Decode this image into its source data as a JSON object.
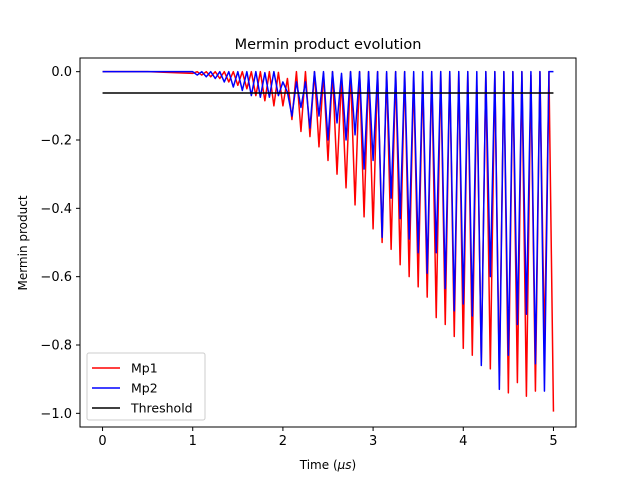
{
  "chart_data": {
    "type": "line",
    "title": "Mermin product evolution",
    "xlabel_prefix": "Time (",
    "xlabel_unit": "μs",
    "xlabel_suffix": ")",
    "ylabel": "Mermin product",
    "xlim": [
      -0.25,
      5.25
    ],
    "ylim": [
      -1.04,
      0.04
    ],
    "xticks": [
      0,
      1,
      2,
      3,
      4,
      5
    ],
    "xtick_labels": [
      "0",
      "1",
      "2",
      "3",
      "4",
      "5"
    ],
    "yticks": [
      0.0,
      -0.2,
      -0.4,
      -0.6,
      -0.8,
      -1.0
    ],
    "ytick_labels": [
      "0.0",
      "−0.2",
      "−0.4",
      "−0.6",
      "−0.8",
      "−1.0"
    ],
    "grid": false,
    "legend_position": "lower-left",
    "series": [
      {
        "name": "Mp1",
        "color": "#ff0000",
        "x": [
          0,
          0.5,
          1.0,
          1.05,
          1.1,
          1.15,
          1.2,
          1.25,
          1.3,
          1.35,
          1.4,
          1.45,
          1.5,
          1.55,
          1.6,
          1.65,
          1.7,
          1.75,
          1.8,
          1.85,
          1.9,
          1.95,
          2.0,
          2.05,
          2.1,
          2.15,
          2.2,
          2.25,
          2.3,
          2.35,
          2.4,
          2.45,
          2.5,
          2.55,
          2.6,
          2.65,
          2.7,
          2.75,
          2.8,
          2.85,
          2.9,
          2.95,
          3.0,
          3.05,
          3.1,
          3.15,
          3.2,
          3.25,
          3.3,
          3.35,
          3.4,
          3.45,
          3.5,
          3.55,
          3.6,
          3.65,
          3.7,
          3.75,
          3.8,
          3.85,
          3.9,
          3.95,
          4.0,
          4.05,
          4.1,
          4.15,
          4.2,
          4.25,
          4.3,
          4.35,
          4.4,
          4.45,
          4.5,
          4.55,
          4.6,
          4.65,
          4.7,
          4.75,
          4.8,
          4.85,
          4.9,
          4.95,
          5.0
        ],
        "y": [
          0,
          0,
          -0.005,
          0,
          -0.01,
          0,
          -0.015,
          0,
          -0.02,
          0,
          -0.03,
          0,
          -0.04,
          0,
          -0.05,
          0,
          -0.07,
          0,
          -0.085,
          0,
          -0.1,
          -0.002,
          -0.1,
          -0.02,
          -0.14,
          0,
          -0.175,
          0,
          -0.19,
          0,
          -0.22,
          -0.005,
          -0.26,
          0,
          -0.3,
          -0.02,
          -0.34,
          0,
          -0.39,
          0,
          -0.425,
          0,
          -0.46,
          0,
          -0.5,
          -0.005,
          -0.52,
          0,
          -0.565,
          0,
          -0.6,
          -0.015,
          -0.63,
          -0.02,
          -0.66,
          0,
          -0.72,
          0,
          -0.74,
          0,
          -0.775,
          0,
          -0.81,
          0,
          -0.83,
          -0.04,
          -0.85,
          0,
          -0.87,
          0,
          -0.89,
          0,
          -0.94,
          0,
          -0.91,
          0,
          -0.95,
          -0.01,
          -0.935,
          0,
          -0.8,
          0,
          -0.995
        ]
      },
      {
        "name": "Mp2",
        "color": "#0000ff",
        "x": [
          0,
          0.5,
          1.0,
          1.05,
          1.1,
          1.15,
          1.2,
          1.25,
          1.3,
          1.35,
          1.4,
          1.45,
          1.5,
          1.55,
          1.6,
          1.65,
          1.7,
          1.75,
          1.8,
          1.85,
          1.9,
          1.95,
          2.0,
          2.05,
          2.1,
          2.15,
          2.2,
          2.25,
          2.3,
          2.35,
          2.4,
          2.45,
          2.5,
          2.55,
          2.6,
          2.65,
          2.7,
          2.75,
          2.8,
          2.85,
          2.9,
          2.95,
          3.0,
          3.05,
          3.1,
          3.15,
          3.2,
          3.25,
          3.3,
          3.35,
          3.4,
          3.45,
          3.5,
          3.55,
          3.6,
          3.65,
          3.7,
          3.75,
          3.8,
          3.85,
          3.9,
          3.95,
          4.0,
          4.05,
          4.1,
          4.15,
          4.2,
          4.25,
          4.3,
          4.35,
          4.4,
          4.45,
          4.5,
          4.55,
          4.6,
          4.65,
          4.7,
          4.75,
          4.8,
          4.85,
          4.9,
          4.95,
          5.0
        ],
        "y": [
          0,
          0,
          0,
          -0.01,
          0,
          -0.015,
          0,
          -0.02,
          0,
          -0.03,
          0,
          -0.045,
          0,
          -0.055,
          0,
          -0.07,
          0,
          -0.075,
          -0.003,
          -0.075,
          0,
          -0.07,
          -0.03,
          -0.06,
          -0.13,
          -0.03,
          -0.105,
          -0.03,
          -0.165,
          0,
          -0.13,
          0,
          -0.2,
          0,
          -0.15,
          -0.005,
          -0.2,
          0,
          -0.185,
          0,
          -0.285,
          0,
          -0.26,
          0,
          -0.485,
          0,
          -0.37,
          0,
          -0.43,
          0,
          -0.49,
          0,
          -0.53,
          0,
          -0.59,
          0,
          -0.53,
          0,
          -0.635,
          0,
          -0.7,
          0,
          -0.68,
          0,
          -0.715,
          0,
          -0.86,
          0,
          -0.6,
          0,
          -0.93,
          0,
          -0.83,
          0,
          -0.74,
          0,
          -0.71,
          0,
          -0.855,
          0,
          -0.935,
          0,
          0
        ]
      },
      {
        "name": "Threshold",
        "color": "#000000",
        "x": [
          0,
          5.0
        ],
        "y": [
          -0.0625,
          -0.0625
        ]
      }
    ]
  }
}
